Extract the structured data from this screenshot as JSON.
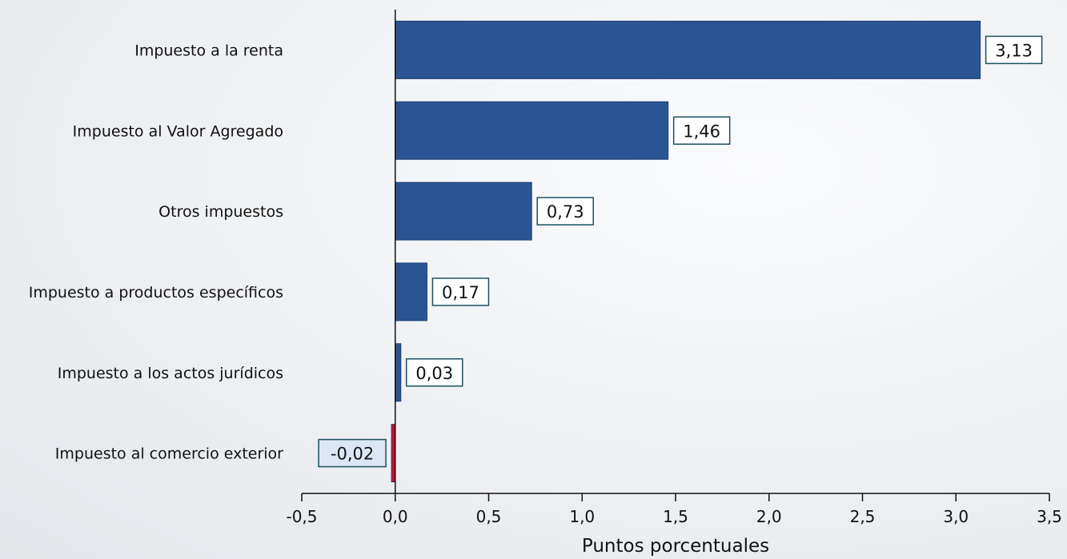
{
  "chart_data": {
    "type": "bar",
    "orientation": "horizontal",
    "categories": [
      "Impuesto a la renta",
      "Impuesto al Valor Agregado",
      "Otros impuestos",
      "Impuesto a productos específicos",
      "Impuesto a los actos jurídicos",
      "Impuesto al comercio exterior"
    ],
    "values": [
      3.13,
      1.46,
      0.73,
      0.17,
      0.03,
      -0.02
    ],
    "value_labels": [
      "3,13",
      "1,46",
      "0,73",
      "0,17",
      "0,03",
      "-0,02"
    ],
    "xlabel": "Puntos porcentuales",
    "xlim": [
      -0.5,
      3.5
    ],
    "ticks": [
      -0.5,
      0.0,
      0.5,
      1.0,
      1.5,
      2.0,
      2.5,
      3.0,
      3.5
    ],
    "tick_labels": [
      "-0,5",
      "0,0",
      "0,5",
      "1,0",
      "1,5",
      "2,0",
      "2,5",
      "3,0",
      "3,5"
    ],
    "grid": false,
    "colors": {
      "positive": "#2b5592",
      "negative": "#c8102e",
      "label_border": "#1f4e5f",
      "positive_label_bg": "#ffffff",
      "negative_label_bg": "#dce6f4"
    }
  }
}
